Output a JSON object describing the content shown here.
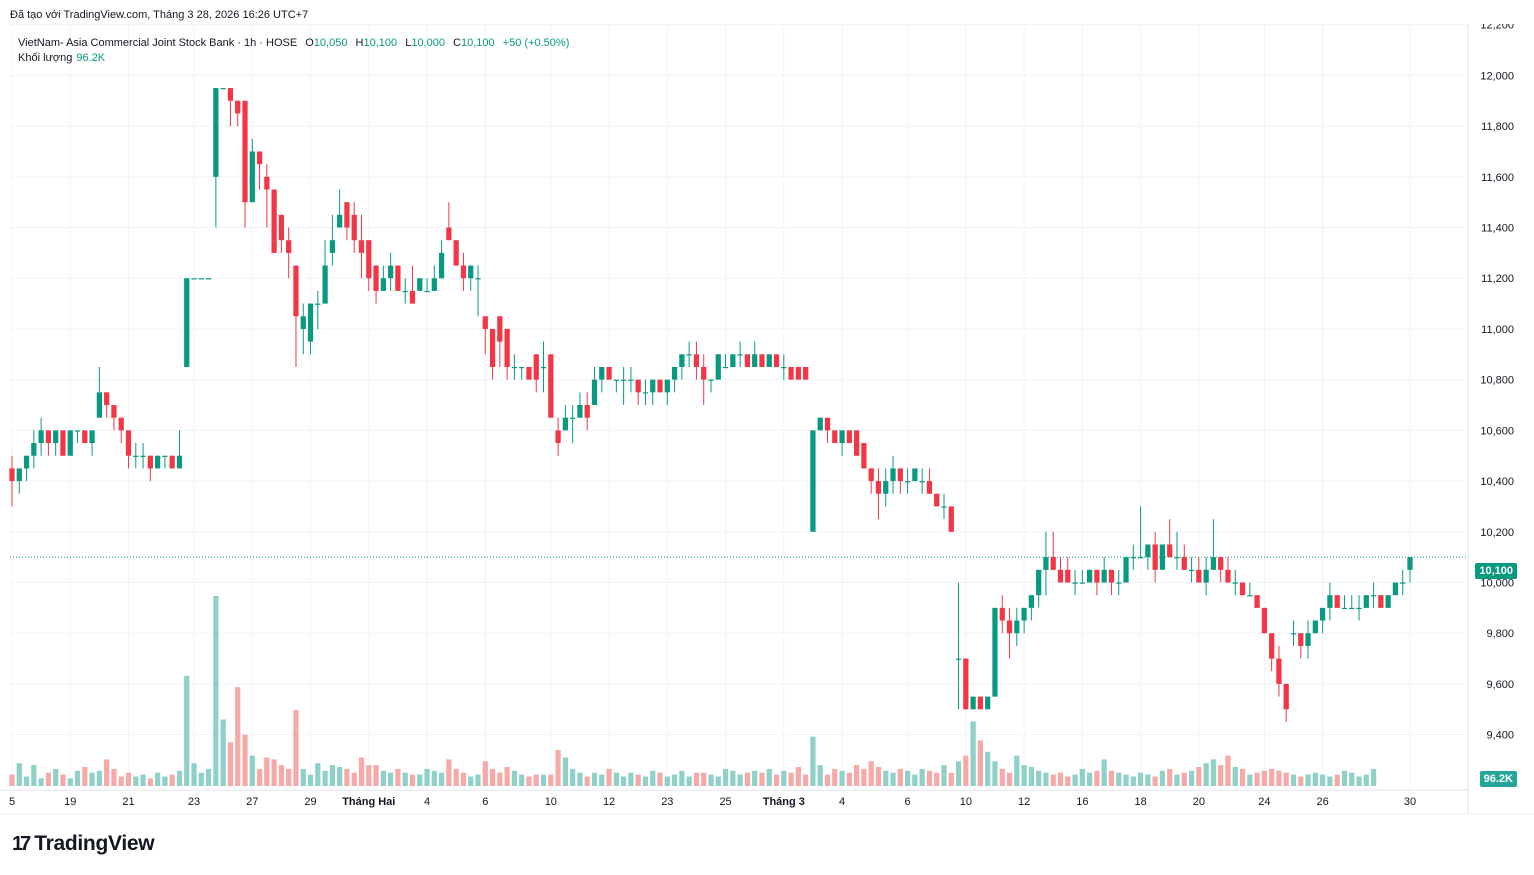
{
  "header": {
    "attribution": "Đã tạo với TradingView.com, Tháng 3 28, 2026 16:26 UTC+7"
  },
  "legend": {
    "symbol": "VietNam- Asia Commercial Joint Stock Bank · 1h · HOSE",
    "o_label": "O",
    "o_value": "10,050",
    "h_label": "H",
    "h_value": "10,100",
    "l_label": "L",
    "l_value": "10,000",
    "c_label": "C",
    "c_value": "10,100",
    "change": "+50 (+0.50%)",
    "volume_label": "Khối lượng",
    "volume_value": "96.2K"
  },
  "badges": {
    "last_price": "10,100",
    "last_volume": "96.2K"
  },
  "brand": {
    "name": "TradingView",
    "mark": "17"
  },
  "colors": {
    "up": "#089981",
    "down": "#f23645",
    "vol_up": "#8fd1c8",
    "vol_down": "#f7a9a7",
    "grid": "#f0f3fa",
    "text": "#131722"
  },
  "chart_data": {
    "type": "candlestick",
    "interval": "1h",
    "ylim": [
      9300,
      12250
    ],
    "y_ticks": [
      "12,200",
      "12,000",
      "11,800",
      "11,600",
      "11,400",
      "11,200",
      "11,000",
      "10,800",
      "10,600",
      "10,400",
      "10,200",
      "10,000",
      "9,800",
      "9,600",
      "9,400"
    ],
    "y_tick_values": [
      12200,
      12000,
      11800,
      11600,
      11400,
      11200,
      11000,
      10800,
      10600,
      10400,
      10200,
      10000,
      9800,
      9600,
      9400
    ],
    "x_ticks": [
      "5",
      "19",
      "21",
      "23",
      "27",
      "29",
      "Tháng Hai",
      "4",
      "6",
      "10",
      "12",
      "23",
      "25",
      "Tháng 3",
      "4",
      "6",
      "10",
      "12",
      "16",
      "18",
      "20",
      "24",
      "26",
      "30"
    ],
    "last_close": 10100,
    "candles": [
      [
        10450,
        10500,
        10300,
        10400
      ],
      [
        10400,
        10450,
        10350,
        10450
      ],
      [
        10450,
        10500,
        10400,
        10500
      ],
      [
        10500,
        10600,
        10450,
        10550
      ],
      [
        10550,
        10650,
        10500,
        10600
      ],
      [
        10600,
        10600,
        10500,
        10550
      ],
      [
        10550,
        10600,
        10500,
        10600
      ],
      [
        10600,
        10600,
        10500,
        10500
      ],
      [
        10500,
        10600,
        10500,
        10600
      ],
      [
        10600,
        10600,
        10550,
        10600
      ],
      [
        10600,
        10600,
        10550,
        10550
      ],
      [
        10550,
        10600,
        10500,
        10600
      ],
      [
        10650,
        10850,
        10650,
        10750
      ],
      [
        10750,
        10750,
        10650,
        10700
      ],
      [
        10700,
        10700,
        10600,
        10650
      ],
      [
        10650,
        10650,
        10550,
        10600
      ],
      [
        10600,
        10600,
        10450,
        10500
      ],
      [
        10500,
        10550,
        10450,
        10500
      ],
      [
        10500,
        10550,
        10450,
        10500
      ],
      [
        10500,
        10500,
        10400,
        10450
      ],
      [
        10450,
        10500,
        10450,
        10500
      ],
      [
        10500,
        10500,
        10450,
        10500
      ],
      [
        10500,
        10500,
        10450,
        10450
      ],
      [
        10450,
        10600,
        10450,
        10500
      ],
      [
        10850,
        11200,
        10850,
        11200
      ],
      [
        11200,
        11200,
        11200,
        11200
      ],
      [
        11200,
        11200,
        11200,
        11200
      ],
      [
        11200,
        11200,
        11200,
        11200
      ],
      [
        11600,
        11950,
        11400,
        11950
      ],
      [
        11950,
        11950,
        11950,
        11950
      ],
      [
        11950,
        11950,
        11800,
        11900
      ],
      [
        11900,
        11900,
        11800,
        11850
      ],
      [
        11900,
        11900,
        11400,
        11500
      ],
      [
        11500,
        11750,
        11500,
        11700
      ],
      [
        11700,
        11700,
        11550,
        11650
      ],
      [
        11600,
        11650,
        11400,
        11550
      ],
      [
        11550,
        11550,
        11300,
        11300
      ],
      [
        11450,
        11450,
        11300,
        11350
      ],
      [
        11350,
        11400,
        11200,
        11300
      ],
      [
        11250,
        11250,
        10850,
        11050
      ],
      [
        11000,
        11100,
        10900,
        11050
      ],
      [
        10950,
        11100,
        10900,
        11100
      ],
      [
        11100,
        11150,
        11000,
        11100
      ],
      [
        11100,
        11350,
        11100,
        11250
      ],
      [
        11300,
        11450,
        11250,
        11350
      ],
      [
        11400,
        11550,
        11400,
        11450
      ],
      [
        11500,
        11500,
        11350,
        11400
      ],
      [
        11450,
        11500,
        11300,
        11350
      ],
      [
        11350,
        11450,
        11200,
        11300
      ],
      [
        11350,
        11350,
        11150,
        11200
      ],
      [
        11250,
        11250,
        11100,
        11150
      ],
      [
        11150,
        11250,
        11150,
        11200
      ],
      [
        11200,
        11300,
        11150,
        11250
      ],
      [
        11250,
        11250,
        11150,
        11150
      ],
      [
        11150,
        11200,
        11100,
        11150
      ],
      [
        11150,
        11250,
        11100,
        11100
      ],
      [
        11150,
        11200,
        11150,
        11200
      ],
      [
        11150,
        11200,
        11150,
        11150
      ],
      [
        11150,
        11250,
        11150,
        11200
      ],
      [
        11200,
        11350,
        11200,
        11300
      ],
      [
        11400,
        11500,
        11350,
        11350
      ],
      [
        11350,
        11350,
        11250,
        11250
      ],
      [
        11250,
        11300,
        11150,
        11200
      ],
      [
        11200,
        11250,
        11150,
        11250
      ],
      [
        11200,
        11250,
        11050,
        11200
      ],
      [
        11050,
        11050,
        10900,
        11000
      ],
      [
        11000,
        11000,
        10800,
        10850
      ],
      [
        11050,
        11050,
        10850,
        10950
      ],
      [
        11000,
        11000,
        10800,
        10850
      ],
      [
        10850,
        10900,
        10800,
        10850
      ],
      [
        10850,
        10850,
        10800,
        10850
      ],
      [
        10850,
        10850,
        10800,
        10800
      ],
      [
        10900,
        10900,
        10750,
        10800
      ],
      [
        10850,
        10950,
        10750,
        10850
      ],
      [
        10900,
        10900,
        10650,
        10650
      ],
      [
        10600,
        10650,
        10500,
        10550
      ],
      [
        10600,
        10700,
        10600,
        10650
      ],
      [
        10650,
        10700,
        10550,
        10650
      ],
      [
        10650,
        10750,
        10650,
        10700
      ],
      [
        10700,
        10750,
        10600,
        10650
      ],
      [
        10700,
        10850,
        10700,
        10800
      ],
      [
        10800,
        10850,
        10750,
        10850
      ],
      [
        10850,
        10850,
        10800,
        10800
      ],
      [
        10800,
        10800,
        10750,
        10800
      ],
      [
        10800,
        10850,
        10700,
        10800
      ],
      [
        10800,
        10850,
        10750,
        10800
      ],
      [
        10800,
        10800,
        10700,
        10750
      ],
      [
        10750,
        10800,
        10700,
        10750
      ],
      [
        10750,
        10800,
        10700,
        10800
      ],
      [
        10800,
        10800,
        10750,
        10750
      ],
      [
        10750,
        10800,
        10700,
        10800
      ],
      [
        10800,
        10850,
        10750,
        10850
      ],
      [
        10850,
        10900,
        10800,
        10900
      ],
      [
        10900,
        10950,
        10850,
        10900
      ],
      [
        10900,
        10950,
        10800,
        10850
      ],
      [
        10850,
        10900,
        10700,
        10800
      ],
      [
        10800,
        10800,
        10750,
        10800
      ],
      [
        10800,
        10900,
        10800,
        10900
      ],
      [
        10850,
        10900,
        10850,
        10850
      ],
      [
        10850,
        10900,
        10850,
        10900
      ],
      [
        10900,
        10950,
        10850,
        10900
      ],
      [
        10900,
        10900,
        10850,
        10850
      ],
      [
        10850,
        10950,
        10850,
        10900
      ],
      [
        10900,
        10900,
        10850,
        10850
      ],
      [
        10850,
        10900,
        10850,
        10900
      ],
      [
        10900,
        10900,
        10850,
        10850
      ],
      [
        10850,
        10900,
        10800,
        10850
      ],
      [
        10850,
        10850,
        10800,
        10800
      ],
      [
        10850,
        10850,
        10800,
        10800
      ],
      [
        10850,
        10850,
        10800,
        10800
      ],
      [
        10200,
        10600,
        10200,
        10600
      ],
      [
        10600,
        10650,
        10600,
        10650
      ],
      [
        10650,
        10650,
        10550,
        10600
      ],
      [
        10600,
        10600,
        10550,
        10550
      ],
      [
        10550,
        10600,
        10500,
        10600
      ],
      [
        10600,
        10600,
        10550,
        10550
      ],
      [
        10600,
        10600,
        10500,
        10500
      ],
      [
        10550,
        10550,
        10450,
        10450
      ],
      [
        10450,
        10450,
        10350,
        10400
      ],
      [
        10400,
        10450,
        10250,
        10350
      ],
      [
        10350,
        10450,
        10300,
        10400
      ],
      [
        10400,
        10500,
        10350,
        10450
      ],
      [
        10450,
        10450,
        10350,
        10400
      ],
      [
        10400,
        10450,
        10350,
        10400
      ],
      [
        10400,
        10450,
        10400,
        10450
      ],
      [
        10400,
        10450,
        10350,
        10400
      ],
      [
        10400,
        10450,
        10350,
        10350
      ],
      [
        10350,
        10350,
        10300,
        10300
      ],
      [
        10300,
        10350,
        10250,
        10300
      ],
      [
        10300,
        10300,
        10200,
        10200
      ],
      [
        9700,
        10000,
        9500,
        9700
      ],
      [
        9700,
        9700,
        9500,
        9500
      ],
      [
        9500,
        9550,
        9500,
        9550
      ],
      [
        9550,
        9550,
        9500,
        9500
      ],
      [
        9500,
        9550,
        9500,
        9550
      ],
      [
        9550,
        9900,
        9550,
        9900
      ],
      [
        9900,
        9950,
        9800,
        9850
      ],
      [
        9850,
        9900,
        9700,
        9800
      ],
      [
        9800,
        9900,
        9750,
        9850
      ],
      [
        9850,
        9900,
        9800,
        9900
      ],
      [
        9900,
        9950,
        9850,
        9950
      ],
      [
        9950,
        10050,
        9900,
        10050
      ],
      [
        10050,
        10200,
        9950,
        10100
      ],
      [
        10100,
        10200,
        10050,
        10050
      ],
      [
        10050,
        10100,
        10000,
        10000
      ],
      [
        10050,
        10100,
        10000,
        10000
      ],
      [
        10000,
        10050,
        9950,
        10000
      ],
      [
        10000,
        10050,
        10000,
        10000
      ],
      [
        10000,
        10050,
        10000,
        10050
      ],
      [
        10050,
        10050,
        9950,
        10000
      ],
      [
        10000,
        10100,
        10000,
        10050
      ],
      [
        10050,
        10050,
        9950,
        10000
      ],
      [
        10000,
        10050,
        9950,
        10000
      ],
      [
        10000,
        10100,
        10000,
        10100
      ],
      [
        10100,
        10150,
        10050,
        10100
      ],
      [
        10100,
        10300,
        10100,
        10100
      ],
      [
        10100,
        10150,
        10050,
        10150
      ],
      [
        10150,
        10200,
        10000,
        10050
      ],
      [
        10050,
        10150,
        10050,
        10150
      ],
      [
        10150,
        10250,
        10100,
        10100
      ],
      [
        10100,
        10200,
        10050,
        10100
      ],
      [
        10100,
        10150,
        10050,
        10050
      ],
      [
        10050,
        10100,
        10000,
        10050
      ],
      [
        10050,
        10100,
        10000,
        10000
      ],
      [
        10000,
        10100,
        9950,
        10050
      ],
      [
        10050,
        10250,
        10050,
        10100
      ],
      [
        10100,
        10100,
        10000,
        10050
      ],
      [
        10050,
        10100,
        10000,
        10000
      ],
      [
        10000,
        10050,
        9950,
        10000
      ],
      [
        10000,
        10000,
        9950,
        9950
      ],
      [
        9950,
        10000,
        9950,
        9950
      ],
      [
        9950,
        9950,
        9900,
        9900
      ],
      [
        9900,
        9900,
        9800,
        9800
      ],
      [
        9800,
        9800,
        9650,
        9700
      ],
      [
        9700,
        9750,
        9550,
        9600
      ],
      [
        9600,
        9600,
        9450,
        9500
      ],
      [
        9800,
        9850,
        9750,
        9800
      ],
      [
        9800,
        9800,
        9700,
        9750
      ],
      [
        9750,
        9850,
        9700,
        9800
      ],
      [
        9800,
        9850,
        9800,
        9850
      ],
      [
        9850,
        9900,
        9800,
        9900
      ],
      [
        9900,
        10000,
        9850,
        9950
      ],
      [
        9950,
        9950,
        9900,
        9900
      ],
      [
        9900,
        9950,
        9900,
        9900
      ],
      [
        9900,
        9950,
        9900,
        9900
      ],
      [
        9900,
        9950,
        9850,
        9900
      ],
      [
        9900,
        9950,
        9900,
        9950
      ],
      [
        9950,
        10000,
        9900,
        9950
      ],
      [
        9950,
        9950,
        9900,
        9900
      ],
      [
        9900,
        9950,
        9900,
        9950
      ],
      [
        9950,
        10000,
        9950,
        10000
      ],
      [
        10000,
        10050,
        9950,
        10000
      ],
      [
        10050,
        10100,
        10000,
        10100
      ]
    ],
    "volume_scale_max": 10000,
    "volumes": [
      600,
      1200,
      500,
      1100,
      400,
      700,
      900,
      600,
      400,
      800,
      1000,
      700,
      800,
      1400,
      900,
      500,
      700,
      500,
      600,
      400,
      700,
      500,
      600,
      800,
      5800,
      1200,
      700,
      900,
      10000,
      3500,
      2300,
      5200,
      2700,
      1600,
      900,
      1500,
      1400,
      1100,
      900,
      4000,
      900,
      600,
      1200,
      800,
      1100,
      1000,
      900,
      700,
      1500,
      1100,
      1100,
      800,
      700,
      900,
      700,
      600,
      600,
      900,
      800,
      700,
      1400,
      900,
      700,
      500,
      600,
      1300,
      900,
      700,
      1000,
      800,
      600,
      500,
      600,
      600,
      600,
      1900,
      1500,
      900,
      700,
      500,
      700,
      600,
      900,
      700,
      500,
      700,
      600,
      500,
      800,
      700,
      500,
      600,
      800,
      500,
      700,
      700,
      600,
      500,
      900,
      800,
      600,
      700,
      800,
      700,
      900,
      600,
      800,
      700,
      1000,
      600,
      2600,
      1100,
      600,
      900,
      800,
      700,
      1100,
      900,
      1300,
      1000,
      800,
      700,
      900,
      800,
      600,
      900,
      800,
      700,
      1100,
      700,
      1300,
      1600,
      3400,
      2400,
      1800,
      1300,
      900,
      700,
      1600,
      1100,
      1000,
      800,
      700,
      600,
      700,
      500,
      600,
      900,
      700,
      800,
      1400,
      800,
      700,
      600,
      500,
      700,
      600,
      500,
      800,
      900,
      600,
      700,
      800,
      1000,
      1200,
      1400,
      1100,
      1600,
      1000,
      900,
      600,
      700,
      800,
      900,
      800,
      700,
      600,
      500,
      600,
      700,
      600,
      500,
      600,
      800,
      700,
      500,
      600,
      900
    ]
  }
}
